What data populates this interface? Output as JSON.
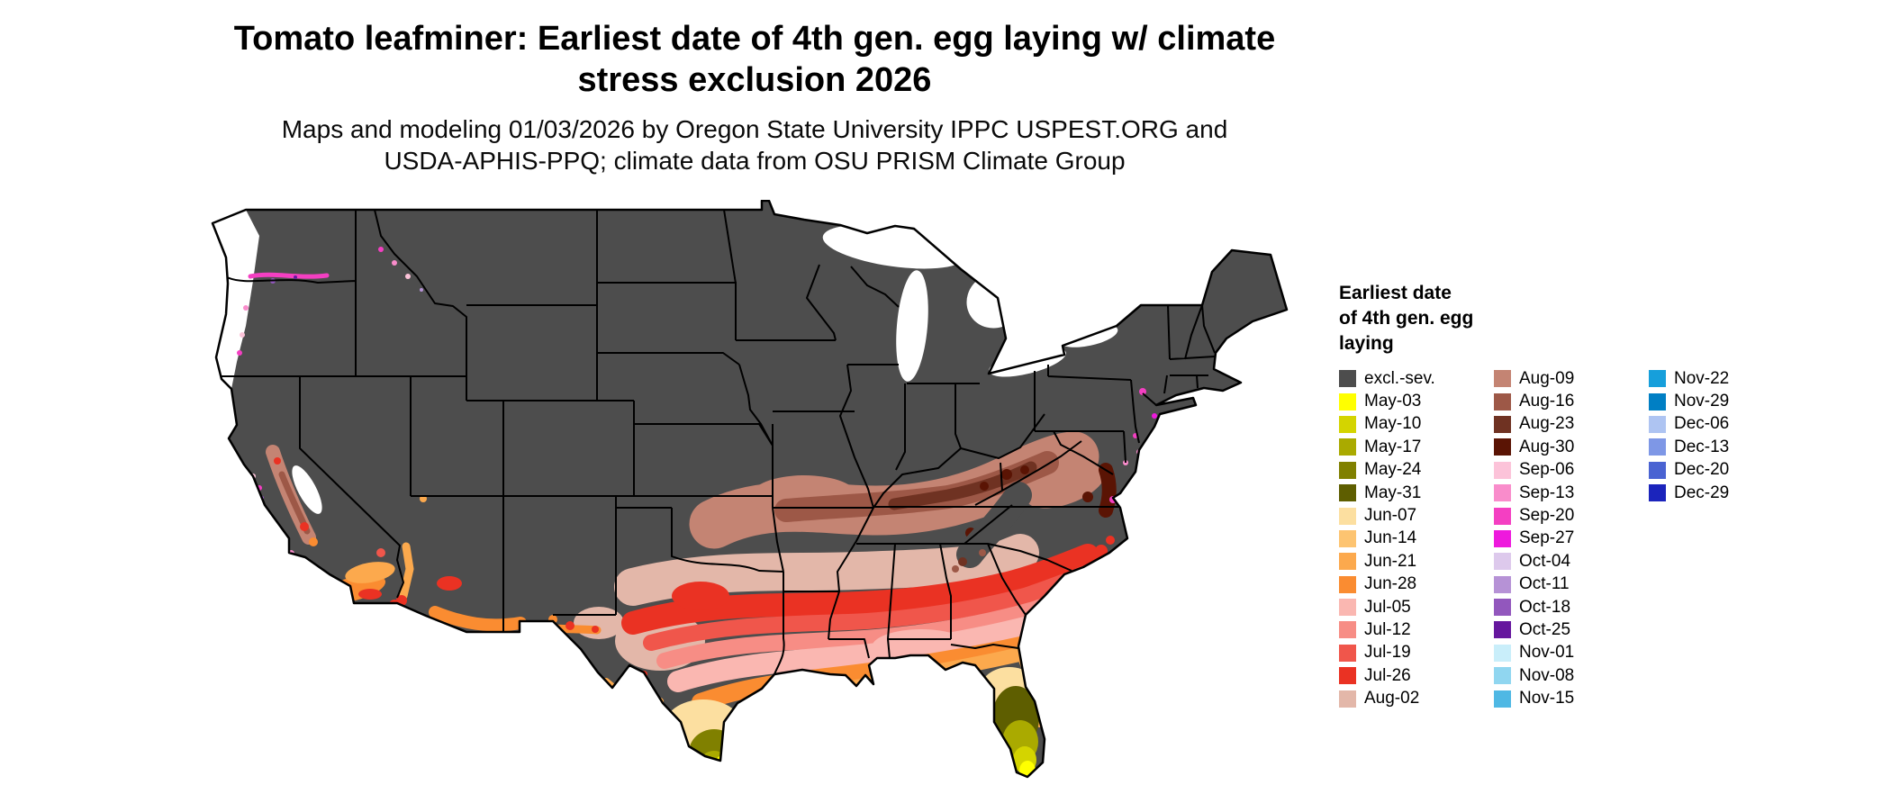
{
  "title": {
    "line1": "Tomato leafminer: Earliest date of 4th gen. egg laying w/ climate",
    "line2": "stress exclusion 2026"
  },
  "subtitle": {
    "line1": "Maps and modeling 01/03/2026 by Oregon State University IPPC USPEST.ORG and",
    "line2": "USDA-APHIS-PPQ; climate data from OSU PRISM Climate Group"
  },
  "map": {
    "region": "Contiguous United States",
    "kind": "choropleth of earliest date of 4th generation egg laying, 2026"
  },
  "legend": {
    "title_lines": [
      "Earliest date",
      "of 4th gen. egg",
      "laying"
    ],
    "columns": [
      [
        "excl.-sev.",
        "May-03",
        "May-10",
        "May-17",
        "May-24",
        "May-31",
        "Jun-07",
        "Jun-14",
        "Jun-21",
        "Jun-28",
        "Jul-05",
        "Jul-12",
        "Jul-19",
        "Jul-26",
        "Aug-02"
      ],
      [
        "Aug-09",
        "Aug-16",
        "Aug-23",
        "Aug-30",
        "Sep-06",
        "Sep-13",
        "Sep-20",
        "Sep-27",
        "Oct-04",
        "Oct-11",
        "Oct-18",
        "Oct-25",
        "Nov-01",
        "Nov-08",
        "Nov-15"
      ],
      [
        "Nov-22",
        "Nov-29",
        "Dec-06",
        "Dec-13",
        "Dec-20",
        "Dec-29"
      ]
    ],
    "palette": {
      "excl.-sev.": "#4d4d4d",
      "May-03": "#ffff00",
      "May-10": "#d4d400",
      "May-17": "#aaaa00",
      "May-24": "#808000",
      "May-31": "#5e5e00",
      "Jun-07": "#fcdfa0",
      "Jun-14": "#fdc471",
      "Jun-21": "#fca94d",
      "Jun-28": "#fa8c31",
      "Jul-05": "#fab7b1",
      "Jul-12": "#f78d85",
      "Jul-19": "#f0564b",
      "Jul-26": "#ea3223",
      "Aug-02": "#e3b7a9",
      "Aug-09": "#c48473",
      "Aug-16": "#9d5847",
      "Aug-23": "#6f3222",
      "Aug-30": "#5a1404",
      "Sep-06": "#fcc3d9",
      "Sep-13": "#f98ccb",
      "Sep-20": "#f43fc2",
      "Sep-27": "#ee19dd",
      "Oct-04": "#ddc9ec",
      "Oct-11": "#b692d6",
      "Oct-18": "#9257bd",
      "Oct-25": "#66179e",
      "Nov-01": "#c9eefa",
      "Nov-08": "#90d6f0",
      "Nov-15": "#4fb8e4",
      "Nov-22": "#169fdb",
      "Nov-29": "#007fc4",
      "Dec-06": "#aec4f2",
      "Dec-13": "#7e97e6",
      "Dec-20": "#4a63d2",
      "Dec-29": "#1b24bc"
    }
  }
}
